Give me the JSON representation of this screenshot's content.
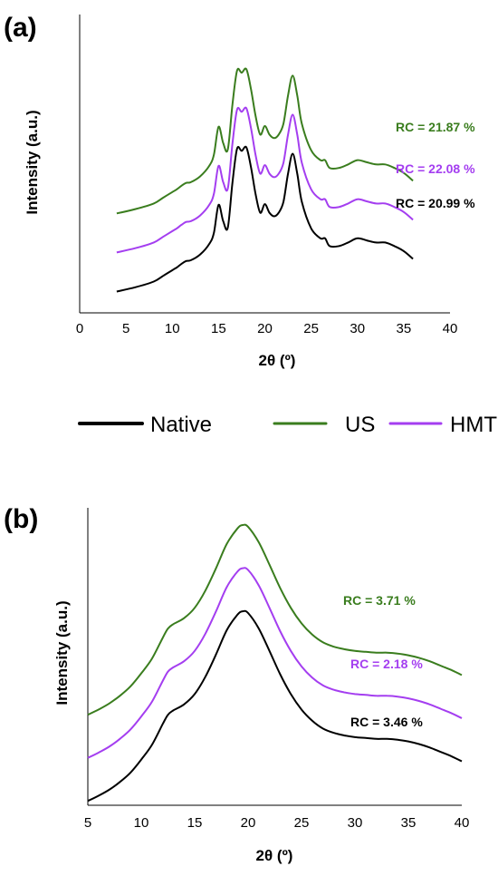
{
  "colors": {
    "native": "#000000",
    "us": "#3a7d1e",
    "hmt": "#a43ef0"
  },
  "legend": [
    {
      "key": "native",
      "label": "Native"
    },
    {
      "key": "us",
      "label": "US"
    },
    {
      "key": "hmt",
      "label": "HMT"
    }
  ],
  "chart_data": [
    {
      "panel_label": "(a)",
      "type": "line",
      "xlabel": "2θ (º)",
      "ylabel": "Intensity (a.u.)",
      "xlim": [
        0,
        40
      ],
      "xticks": [
        0,
        5,
        10,
        15,
        20,
        25,
        30,
        35,
        40
      ],
      "y_ticks_shown": false,
      "series": [
        {
          "name": "Native",
          "key": "native",
          "rc_label": "RC = 20.99 %",
          "x": [
            4,
            6,
            8,
            9,
            10,
            10.5,
            11,
            11.5,
            12,
            13,
            14,
            14.5,
            15,
            15.5,
            16,
            16.5,
            17,
            17.5,
            18,
            18.5,
            19,
            19.5,
            20,
            20.5,
            21,
            21.5,
            22,
            22.5,
            23,
            23.5,
            24,
            25,
            26,
            26.5,
            27,
            28,
            29,
            30,
            31,
            32,
            33,
            34,
            35,
            36
          ],
          "y": [
            0.0,
            0.6,
            1.4,
            2.2,
            3.0,
            3.4,
            3.9,
            4.3,
            4.4,
            5.2,
            6.7,
            8.3,
            12.2,
            9.9,
            9.0,
            15.3,
            20.1,
            19.8,
            20.3,
            17.5,
            13.7,
            11.1,
            12.3,
            11.1,
            10.6,
            11.1,
            12.6,
            16.6,
            19.4,
            16.6,
            12.6,
            8.9,
            7.5,
            7.5,
            6.4,
            6.4,
            6.9,
            7.5,
            7.2,
            6.9,
            6.9,
            6.4,
            5.7,
            4.6
          ]
        },
        {
          "name": "US",
          "key": "us",
          "rc_label": "RC = 21.87 %",
          "x": [
            4,
            6,
            8,
            9,
            10,
            10.5,
            11,
            11.5,
            12,
            13,
            14,
            14.5,
            15,
            15.5,
            16,
            16.5,
            17,
            17.5,
            18,
            18.5,
            19,
            19.5,
            20,
            20.5,
            21,
            21.5,
            22,
            22.5,
            23,
            23.5,
            24,
            25,
            26,
            26.5,
            27,
            28,
            29,
            30,
            31,
            32,
            33,
            34,
            35,
            36
          ],
          "y": [
            0.0,
            0.6,
            1.4,
            2.2,
            3.0,
            3.4,
            3.9,
            4.3,
            4.4,
            5.2,
            6.7,
            8.3,
            12.2,
            9.9,
            9.0,
            15.3,
            20.1,
            19.8,
            20.3,
            17.5,
            13.7,
            11.1,
            12.3,
            11.1,
            10.6,
            11.1,
            12.6,
            16.6,
            19.4,
            16.6,
            12.6,
            8.9,
            7.5,
            7.5,
            6.4,
            6.4,
            6.9,
            7.5,
            7.2,
            6.9,
            6.9,
            6.4,
            5.7,
            4.6
          ]
        },
        {
          "name": "HMT",
          "key": "hmt",
          "rc_label": "RC = 22.08 %",
          "x": [
            4,
            6,
            8,
            9,
            10,
            10.5,
            11,
            11.5,
            12,
            13,
            14,
            14.5,
            15,
            15.5,
            16,
            16.5,
            17,
            17.5,
            18,
            18.5,
            19,
            19.5,
            20,
            20.5,
            21,
            21.5,
            22,
            22.5,
            23,
            23.5,
            24,
            25,
            26,
            26.5,
            27,
            28,
            29,
            30,
            31,
            32,
            33,
            34,
            35,
            36
          ],
          "y": [
            0.0,
            0.6,
            1.4,
            2.2,
            3.0,
            3.4,
            3.9,
            4.3,
            4.4,
            5.2,
            6.7,
            8.3,
            12.2,
            9.9,
            9.0,
            15.3,
            20.1,
            19.8,
            20.3,
            17.5,
            13.7,
            11.1,
            12.3,
            11.1,
            10.6,
            11.1,
            12.6,
            16.6,
            19.4,
            16.6,
            12.6,
            8.9,
            7.5,
            7.5,
            6.4,
            6.4,
            6.9,
            7.5,
            7.2,
            6.9,
            6.9,
            6.4,
            5.7,
            4.6
          ]
        }
      ],
      "offsets": {
        "native": 0,
        "hmt": 5.5,
        "us": 11
      },
      "ylim": [
        -3,
        39
      ]
    },
    {
      "panel_label": "(b)",
      "type": "line",
      "xlabel": "2θ (º)",
      "ylabel": "Intensity (a.u.)",
      "xlim": [
        5,
        40
      ],
      "xticks": [
        5,
        10,
        15,
        20,
        25,
        30,
        35,
        40
      ],
      "y_ticks_shown": false,
      "series": [
        {
          "name": "Native",
          "key": "native",
          "rc_label": "RC = 3.46 %",
          "x": [
            5,
            6,
            7,
            8,
            9,
            10,
            11,
            12,
            12.5,
            13,
            14,
            15,
            16,
            17,
            18,
            19,
            19.5,
            20,
            21,
            22,
            23,
            24,
            25,
            26,
            27,
            28,
            29,
            30,
            31,
            32,
            33,
            34,
            35,
            36,
            37,
            38,
            39,
            40
          ],
          "y": [
            0.0,
            0.6,
            1.3,
            2.2,
            3.3,
            4.8,
            6.5,
            8.9,
            10.0,
            10.5,
            11.2,
            12.4,
            14.4,
            17.0,
            19.8,
            21.6,
            22.0,
            21.8,
            20.0,
            17.4,
            14.7,
            12.4,
            10.6,
            9.3,
            8.4,
            7.9,
            7.6,
            7.4,
            7.3,
            7.2,
            7.2,
            7.1,
            6.9,
            6.6,
            6.2,
            5.7,
            5.2,
            4.6
          ]
        },
        {
          "name": "US",
          "key": "us",
          "rc_label": "RC = 3.71 %",
          "x": [
            5,
            6,
            7,
            8,
            9,
            10,
            11,
            12,
            12.5,
            13,
            14,
            15,
            16,
            17,
            18,
            19,
            19.5,
            20,
            21,
            22,
            23,
            24,
            25,
            26,
            27,
            28,
            29,
            30,
            31,
            32,
            33,
            34,
            35,
            36,
            37,
            38,
            39,
            40
          ],
          "y": [
            0.0,
            0.6,
            1.3,
            2.2,
            3.3,
            4.8,
            6.5,
            8.9,
            10.0,
            10.5,
            11.2,
            12.4,
            14.4,
            17.0,
            19.8,
            21.6,
            22.0,
            21.8,
            20.0,
            17.4,
            14.7,
            12.4,
            10.6,
            9.3,
            8.4,
            7.9,
            7.6,
            7.4,
            7.3,
            7.2,
            7.2,
            7.1,
            6.9,
            6.6,
            6.2,
            5.7,
            5.2,
            4.6
          ]
        },
        {
          "name": "HMT",
          "key": "hmt",
          "rc_label": "RC = 2.18 %",
          "x": [
            5,
            6,
            7,
            8,
            9,
            10,
            11,
            12,
            12.5,
            13,
            14,
            15,
            16,
            17,
            18,
            19,
            19.5,
            20,
            21,
            22,
            23,
            24,
            25,
            26,
            27,
            28,
            29,
            30,
            31,
            32,
            33,
            34,
            35,
            36,
            37,
            38,
            39,
            40
          ],
          "y": [
            0.0,
            0.6,
            1.3,
            2.2,
            3.3,
            4.8,
            6.5,
            8.9,
            10.0,
            10.5,
            11.2,
            12.4,
            14.4,
            17.0,
            19.8,
            21.6,
            22.0,
            21.8,
            20.0,
            17.4,
            14.7,
            12.4,
            10.6,
            9.3,
            8.4,
            7.9,
            7.6,
            7.4,
            7.3,
            7.2,
            7.2,
            7.1,
            6.9,
            6.6,
            6.2,
            5.7,
            5.2,
            4.6
          ]
        }
      ],
      "offsets": {
        "native": 0,
        "hmt": 5,
        "us": 10
      },
      "ylim": [
        -0.5,
        34
      ]
    }
  ]
}
